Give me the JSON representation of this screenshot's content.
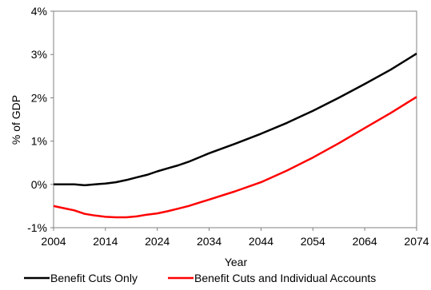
{
  "chart_data": {
    "type": "line",
    "title": "",
    "xlabel": "Year",
    "ylabel": "% of GDP",
    "xlim": [
      2004,
      2074
    ],
    "ylim": [
      -1,
      4
    ],
    "xticks": [
      2004,
      2014,
      2024,
      2034,
      2044,
      2054,
      2064,
      2074
    ],
    "yticks": [
      -1,
      0,
      1,
      2,
      3,
      4
    ],
    "ytick_labels": [
      "-1%",
      "0%",
      "1%",
      "2%",
      "3%",
      "4%"
    ],
    "grid": false,
    "legend_position": "bottom",
    "series": [
      {
        "name": "Benefit Cuts Only",
        "color": "#000000",
        "x": [
          2004,
          2006,
          2008,
          2010,
          2012,
          2014,
          2016,
          2018,
          2020,
          2022,
          2024,
          2026,
          2028,
          2030,
          2034,
          2039,
          2044,
          2049,
          2054,
          2059,
          2064,
          2069,
          2074
        ],
        "y": [
          0.0,
          0.0,
          0.0,
          -0.02,
          0.0,
          0.02,
          0.05,
          0.1,
          0.16,
          0.22,
          0.3,
          0.37,
          0.44,
          0.52,
          0.72,
          0.94,
          1.17,
          1.42,
          1.7,
          2.0,
          2.32,
          2.65,
          3.02
        ]
      },
      {
        "name": "Benefit Cuts and Individual Accounts",
        "color": "#ff0000",
        "x": [
          2004,
          2006,
          2008,
          2010,
          2012,
          2014,
          2016,
          2018,
          2020,
          2022,
          2024,
          2026,
          2028,
          2030,
          2034,
          2039,
          2044,
          2049,
          2054,
          2059,
          2064,
          2069,
          2074
        ],
        "y": [
          -0.5,
          -0.55,
          -0.6,
          -0.68,
          -0.72,
          -0.75,
          -0.76,
          -0.76,
          -0.74,
          -0.7,
          -0.67,
          -0.62,
          -0.56,
          -0.5,
          -0.35,
          -0.16,
          0.05,
          0.32,
          0.62,
          0.95,
          1.3,
          1.65,
          2.02
        ]
      }
    ]
  }
}
